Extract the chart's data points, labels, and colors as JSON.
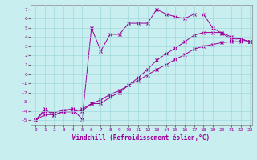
{
  "xlabel": "Windchill (Refroidissement éolien,°C)",
  "bg_color": "#c8eef0",
  "line_color": "#990099",
  "grid_color": "#a0d8dc",
  "xmin": -0.5,
  "xmax": 23.2,
  "ymin": -5.5,
  "ymax": 7.5,
  "xticks": [
    0,
    1,
    2,
    3,
    4,
    5,
    6,
    7,
    8,
    9,
    10,
    11,
    12,
    13,
    14,
    15,
    16,
    17,
    18,
    19,
    20,
    21,
    22,
    23
  ],
  "yticks": [
    -5,
    -4,
    -3,
    -2,
    -1,
    0,
    1,
    2,
    3,
    4,
    5,
    6,
    7
  ],
  "series1_x": [
    0,
    1,
    2,
    3,
    4,
    5,
    6,
    7,
    8,
    9,
    10,
    11,
    12,
    13,
    14,
    15,
    16,
    17,
    18,
    19,
    20,
    21,
    22,
    23
  ],
  "series1_y": [
    -5,
    -3.8,
    -4.5,
    -4.0,
    -3.8,
    -4.9,
    5.0,
    2.5,
    4.3,
    4.3,
    5.5,
    5.5,
    5.5,
    7.0,
    6.5,
    6.2,
    6.0,
    6.5,
    6.5,
    5.0,
    4.4,
    3.8,
    3.8,
    3.5
  ],
  "series2_x": [
    0,
    1,
    2,
    3,
    4,
    5,
    6,
    7,
    8,
    9,
    10,
    11,
    12,
    13,
    14,
    15,
    16,
    17,
    18,
    19,
    20,
    21,
    22,
    23
  ],
  "series2_y": [
    -5,
    -4.4,
    -4.4,
    -4.1,
    -4.1,
    -3.8,
    -3.2,
    -2.8,
    -2.2,
    -1.8,
    -1.2,
    -0.7,
    -0.1,
    0.5,
    1.0,
    1.6,
    2.1,
    2.7,
    3.0,
    3.2,
    3.4,
    3.5,
    3.5,
    3.5
  ],
  "series3_x": [
    0,
    1,
    2,
    3,
    4,
    5,
    6,
    7,
    8,
    9,
    10,
    11,
    12,
    13,
    14,
    15,
    16,
    17,
    18,
    19,
    20,
    21,
    22,
    23
  ],
  "series3_y": [
    -5,
    -4.0,
    -4.2,
    -3.9,
    -3.8,
    -4.0,
    -3.2,
    -3.2,
    -2.5,
    -2.0,
    -1.2,
    -0.4,
    0.5,
    1.5,
    2.2,
    2.8,
    3.5,
    4.2,
    4.5,
    4.5,
    4.5,
    4.0,
    3.8,
    3.5
  ]
}
